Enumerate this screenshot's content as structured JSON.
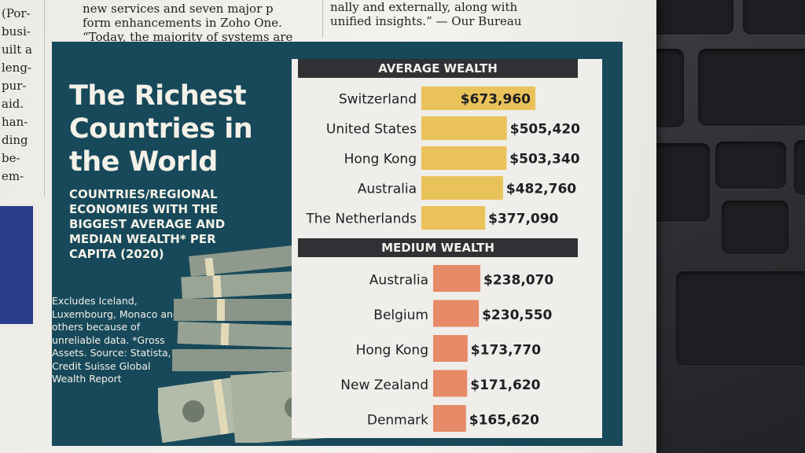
{
  "newspaper": {
    "left_column": [
      "(Por-",
      "busi-",
      "uilt a",
      "leng-",
      "pur-",
      "aid.",
      "han-",
      "ding",
      "be-",
      "em-"
    ],
    "top_left_lines": [
      "new services and seven major p",
      "form enhancements in Zoho One.",
      "“Today, the majority of systems are"
    ],
    "top_right_lines": [
      "nally and externally, along with",
      "unified insights.” — Our Bureau"
    ]
  },
  "infographic": {
    "title": "The Richest Countries in the World",
    "subtitle": "Countries/Regional economies with the biggest average and median wealth* per capita (2020)",
    "footnote": "Excludes Iceland, Luxembourg, Monaco and others because of unreliable data. *Gross Assets. Source: Statista, Credit Suisse Global Wealth Report",
    "colors": {
      "panel": "#17495a",
      "average_bar": "#e9c35a",
      "median_bar": "#e78a68",
      "header": "#2f3134"
    }
  },
  "chart_data": [
    {
      "type": "bar",
      "orientation": "horizontal",
      "title": "AVERAGE WEALTH",
      "categories": [
        "Switzerland",
        "United States",
        "Hong Kong",
        "Australia",
        "The Netherlands"
      ],
      "values": [
        673960,
        505420,
        503340,
        482760,
        377090
      ],
      "value_labels": [
        "$673,960",
        "$505,420",
        "$503,340",
        "$482,760",
        "$377,090"
      ],
      "color": "#e9c35a"
    },
    {
      "type": "bar",
      "orientation": "horizontal",
      "title": "MEDIUM WEALTH",
      "categories": [
        "Australia",
        "Belgium",
        "Hong Kong",
        "New Zealand",
        "Denmark"
      ],
      "values": [
        238070,
        230550,
        173770,
        171620,
        165620
      ],
      "value_labels": [
        "$238,070",
        "$230,550",
        "$173,770",
        "$171,620",
        "$165,620"
      ],
      "color": "#e78a68"
    }
  ]
}
